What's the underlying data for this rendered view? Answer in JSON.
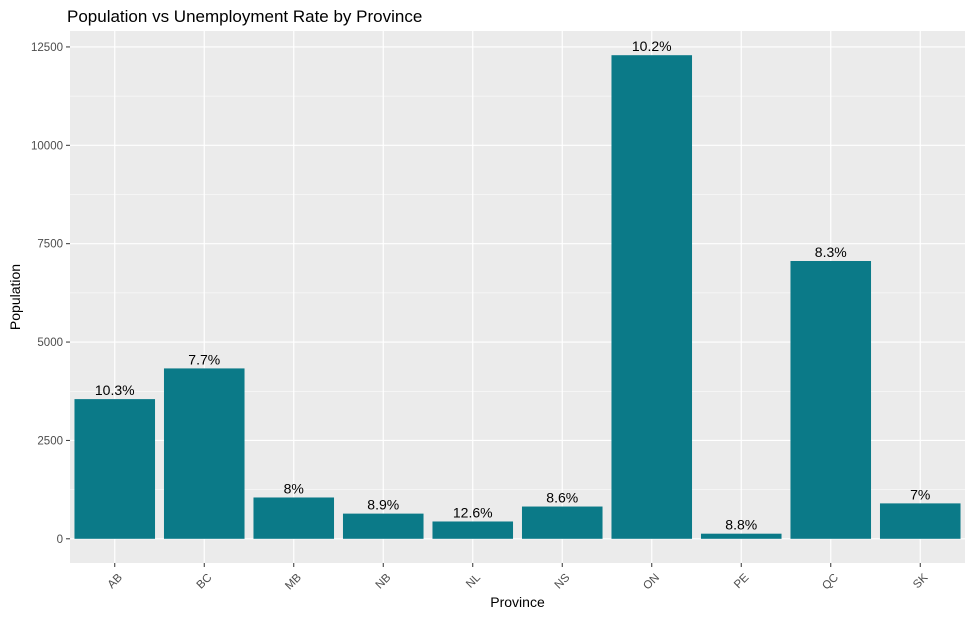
{
  "chart_data": {
    "type": "bar",
    "title": "Population vs Unemployment Rate by Province",
    "xlabel": "Province",
    "ylabel": "Population",
    "categories": [
      "AB",
      "BC",
      "MB",
      "NB",
      "NL",
      "NS",
      "ON",
      "PE",
      "QC",
      "SK"
    ],
    "values": [
      3550,
      4330,
      1050,
      640,
      440,
      820,
      12290,
      130,
      7060,
      900
    ],
    "data_labels": [
      "10.3%",
      "7.7%",
      "8%",
      "8.9%",
      "12.6%",
      "8.6%",
      "10.2%",
      "8.8%",
      "8.3%",
      "7%"
    ],
    "y_ticks": [
      0,
      2500,
      5000,
      7500,
      10000,
      12500
    ],
    "ylim": [
      -615,
      12905
    ],
    "grid": true,
    "bar_color": "#0B7A88",
    "panel_background": "#EBEBEB",
    "grid_color": "#FFFFFF"
  }
}
